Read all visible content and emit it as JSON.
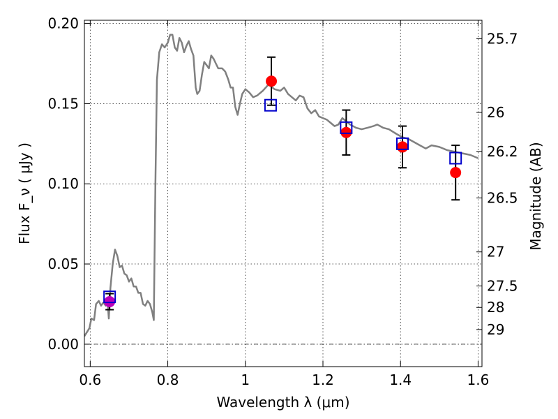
{
  "chart_data": {
    "type": "scatter",
    "xlabel": "Wavelength  λ (μm)",
    "ylabel": "Flux  F_ν  ( μJy )",
    "y2label": "Magnitude (AB)",
    "xlim": [
      0.585,
      1.61
    ],
    "ylim": [
      -0.014,
      0.202
    ],
    "grid": true,
    "x_ticks": [
      {
        "value": 0.6,
        "label": "0.6"
      },
      {
        "value": 0.8,
        "label": "0.8"
      },
      {
        "value": 1.0,
        "label": "1"
      },
      {
        "value": 1.2,
        "label": "1.2"
      },
      {
        "value": 1.4,
        "label": "1.4"
      },
      {
        "value": 1.6,
        "label": "1.6"
      }
    ],
    "y_ticks": [
      {
        "value": 0.0,
        "label": "0.00"
      },
      {
        "value": 0.05,
        "label": "0.05"
      },
      {
        "value": 0.1,
        "label": "0.10"
      },
      {
        "value": 0.15,
        "label": "0.15"
      },
      {
        "value": 0.2,
        "label": "0.20"
      }
    ],
    "y2_ticks": [
      {
        "mag": 25.7,
        "label": "25.7"
      },
      {
        "mag": 26.0,
        "label": "26"
      },
      {
        "mag": 26.2,
        "label": "26.2"
      },
      {
        "mag": 26.5,
        "label": "26.5"
      },
      {
        "mag": 27.0,
        "label": "27"
      },
      {
        "mag": 27.5,
        "label": "27.5"
      },
      {
        "mag": 28.0,
        "label": "28"
      },
      {
        "mag": 29.0,
        "label": "29"
      }
    ],
    "model_spectrum": {
      "color": "#808080",
      "points": [
        [
          0.585,
          0.005
        ],
        [
          0.598,
          0.01
        ],
        [
          0.603,
          0.016
        ],
        [
          0.61,
          0.015
        ],
        [
          0.615,
          0.025
        ],
        [
          0.622,
          0.027
        ],
        [
          0.628,
          0.024
        ],
        [
          0.634,
          0.026
        ],
        [
          0.64,
          0.024
        ],
        [
          0.644,
          0.029
        ],
        [
          0.648,
          0.016
        ],
        [
          0.652,
          0.035
        ],
        [
          0.658,
          0.05
        ],
        [
          0.664,
          0.059
        ],
        [
          0.67,
          0.055
        ],
        [
          0.676,
          0.048
        ],
        [
          0.682,
          0.049
        ],
        [
          0.688,
          0.044
        ],
        [
          0.694,
          0.043
        ],
        [
          0.7,
          0.039
        ],
        [
          0.706,
          0.041
        ],
        [
          0.712,
          0.036
        ],
        [
          0.718,
          0.036
        ],
        [
          0.724,
          0.032
        ],
        [
          0.73,
          0.032
        ],
        [
          0.736,
          0.025
        ],
        [
          0.742,
          0.024
        ],
        [
          0.748,
          0.027
        ],
        [
          0.754,
          0.025
        ],
        [
          0.76,
          0.02
        ],
        [
          0.764,
          0.015
        ],
        [
          0.768,
          0.1
        ],
        [
          0.772,
          0.165
        ],
        [
          0.778,
          0.182
        ],
        [
          0.785,
          0.187
        ],
        [
          0.792,
          0.185
        ],
        [
          0.8,
          0.188
        ],
        [
          0.806,
          0.193
        ],
        [
          0.812,
          0.193
        ],
        [
          0.818,
          0.185
        ],
        [
          0.824,
          0.183
        ],
        [
          0.83,
          0.191
        ],
        [
          0.836,
          0.188
        ],
        [
          0.842,
          0.182
        ],
        [
          0.848,
          0.186
        ],
        [
          0.854,
          0.189
        ],
        [
          0.86,
          0.184
        ],
        [
          0.866,
          0.18
        ],
        [
          0.872,
          0.16
        ],
        [
          0.876,
          0.156
        ],
        [
          0.882,
          0.158
        ],
        [
          0.888,
          0.168
        ],
        [
          0.894,
          0.176
        ],
        [
          0.9,
          0.174
        ],
        [
          0.906,
          0.172
        ],
        [
          0.912,
          0.18
        ],
        [
          0.918,
          0.178
        ],
        [
          0.924,
          0.175
        ],
        [
          0.93,
          0.172
        ],
        [
          0.94,
          0.172
        ],
        [
          0.948,
          0.17
        ],
        [
          0.956,
          0.165
        ],
        [
          0.962,
          0.16
        ],
        [
          0.968,
          0.16
        ],
        [
          0.974,
          0.148
        ],
        [
          0.98,
          0.143
        ],
        [
          0.986,
          0.15
        ],
        [
          0.992,
          0.156
        ],
        [
          1.0,
          0.159
        ],
        [
          1.01,
          0.157
        ],
        [
          1.02,
          0.154
        ],
        [
          1.03,
          0.155
        ],
        [
          1.045,
          0.158
        ],
        [
          1.06,
          0.162
        ],
        [
          1.075,
          0.159
        ],
        [
          1.09,
          0.158
        ],
        [
          1.1,
          0.16
        ],
        [
          1.11,
          0.156
        ],
        [
          1.12,
          0.154
        ],
        [
          1.13,
          0.152
        ],
        [
          1.14,
          0.155
        ],
        [
          1.15,
          0.154
        ],
        [
          1.16,
          0.147
        ],
        [
          1.17,
          0.144
        ],
        [
          1.18,
          0.146
        ],
        [
          1.19,
          0.142
        ],
        [
          1.2,
          0.141
        ],
        [
          1.21,
          0.14
        ],
        [
          1.22,
          0.138
        ],
        [
          1.23,
          0.136
        ],
        [
          1.24,
          0.137
        ],
        [
          1.25,
          0.141
        ],
        [
          1.26,
          0.139
        ],
        [
          1.27,
          0.137
        ],
        [
          1.285,
          0.135
        ],
        [
          1.3,
          0.134
        ],
        [
          1.315,
          0.135
        ],
        [
          1.33,
          0.136
        ],
        [
          1.34,
          0.137
        ],
        [
          1.355,
          0.135
        ],
        [
          1.37,
          0.134
        ],
        [
          1.39,
          0.131
        ],
        [
          1.405,
          0.129
        ],
        [
          1.42,
          0.128
        ],
        [
          1.435,
          0.126
        ],
        [
          1.45,
          0.124
        ],
        [
          1.465,
          0.122
        ],
        [
          1.48,
          0.124
        ],
        [
          1.5,
          0.123
        ],
        [
          1.52,
          0.121
        ],
        [
          1.54,
          0.12
        ],
        [
          1.56,
          0.119
        ],
        [
          1.58,
          0.118
        ],
        [
          1.6,
          0.116
        ]
      ]
    },
    "model_points": {
      "marker": "open-square",
      "color": "#0000cc",
      "points": [
        {
          "x": 0.65,
          "y": 0.0295
        },
        {
          "x": 1.065,
          "y": 0.149
        },
        {
          "x": 1.26,
          "y": 0.135
        },
        {
          "x": 1.405,
          "y": 0.125
        },
        {
          "x": 1.542,
          "y": 0.116
        }
      ]
    },
    "observed_points": {
      "marker": "filled-circle",
      "points": [
        {
          "x": 0.65,
          "y": 0.0265,
          "err": 0.005,
          "color": "#bb00bb"
        },
        {
          "x": 1.067,
          "y": 0.164,
          "err": 0.015,
          "color": "#ff0000"
        },
        {
          "x": 1.26,
          "y": 0.132,
          "err": 0.014,
          "color": "#ff0000"
        },
        {
          "x": 1.405,
          "y": 0.123,
          "err": 0.013,
          "color": "#ff0000"
        },
        {
          "x": 1.542,
          "y": 0.107,
          "err": 0.017,
          "color": "#ff0000"
        }
      ]
    }
  }
}
